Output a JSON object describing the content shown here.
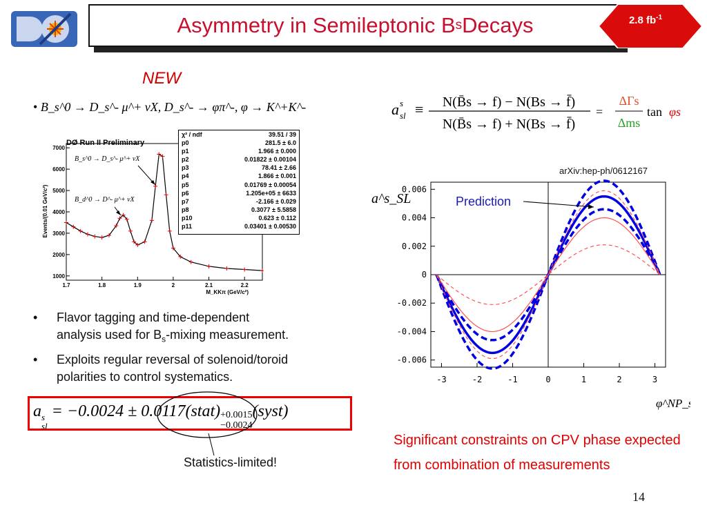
{
  "header": {
    "title": "Asymmetry in Semileptonic B",
    "title_sub": "s",
    "title_tail": " Decays",
    "badge_text": "2.8 fb",
    "badge_sup": "-1",
    "logo_text": "DØ"
  },
  "new_label": "NEW",
  "decay_bullet": {
    "bullet": "•",
    "text": "B_s^0 → D_s^- μ^+ νX, D_s^- → φπ^-, φ → K^+K^-"
  },
  "mass_plot": {
    "title": "DØ Run II Preliminary",
    "ylabel": "Events/(0.01 GeV/c²)",
    "xlabel": "M_KKπ (GeV/c²)",
    "y_ticks": [
      "7000",
      "6000",
      "5000",
      "4000",
      "3000",
      "2000",
      "1000"
    ],
    "x_ticks": [
      "1.7",
      "1.8",
      "1.9",
      "2",
      "2.1",
      "2.2"
    ],
    "ann_bs": "B_s^0 → D_s^- μ^+ νX",
    "ann_bd": "B_d^0 → D^- μ^+ νX",
    "fit_params": [
      {
        "name": "χ² / ndf",
        "value": "39.51 / 39"
      },
      {
        "name": "p0",
        "value": "281.5 ± 6.0"
      },
      {
        "name": "p1",
        "value": "1.966 ± 0.000"
      },
      {
        "name": "p2",
        "value": "0.01822 ± 0.00104"
      },
      {
        "name": "p3",
        "value": "78.41 ± 2.66"
      },
      {
        "name": "p4",
        "value": "1.866 ± 0.001"
      },
      {
        "name": "p5",
        "value": "0.01769 ± 0.00054"
      },
      {
        "name": "p6",
        "value": "1.205e+05 ± 6633"
      },
      {
        "name": "p7",
        "value": "-2.166 ± 0.029"
      },
      {
        "name": "p8",
        "value": "0.3077 ± 5.5858"
      },
      {
        "name": "p10",
        "value": "0.623 ± 0.112"
      },
      {
        "name": "p11",
        "value": "0.03401 ± 0.00530"
      }
    ]
  },
  "bullets": [
    {
      "marker": "•",
      "line1": "Flavor tagging and time-dependent",
      "line2a": "analysis used for B",
      "line2sub": "s",
      "line2b": "-mixing measurement."
    },
    {
      "marker": "•",
      "line1": "Exploits regular reversal of solenoid/toroid",
      "line2a": "polarities to control systematics.",
      "line2sub": "",
      "line2b": ""
    }
  ],
  "result_formula": {
    "lhs": "a",
    "lhs_sup": "s",
    "lhs_sub": "sl",
    "main": " = −0.0024 ± 0.0117(stat)",
    "err_up": "+0.0015",
    "err_down": "−0.0024",
    "syst": "(syst)"
  },
  "stat_note": "Statistics-limited!",
  "definition": {
    "lhs": "a",
    "lhs_sup": "s",
    "lhs_sub": "sl",
    "equiv": "≡",
    "numerator": "N(B̄s → f) − N(Bs → f̄)",
    "denominator": "N(B̄s → f) + N(Bs → f̄)",
    "eq": "=",
    "frac2_num": "ΔΓs",
    "frac2_den": "Δms",
    "tan": "tan",
    "phi": "φs"
  },
  "arxiv_ref": "arXiv:hep-ph/0612167",
  "prediction_plot": {
    "prediction_label": "Prediction",
    "ylabel": "a^s_SL",
    "xlabel": "φ^NP_s",
    "y_ticks": [
      "0.006",
      "0.004",
      "0.002",
      "0",
      "-0.002",
      "-0.004",
      "-0.006"
    ],
    "x_ticks": [
      "-3",
      "-2",
      "-1",
      "0",
      "1",
      "2",
      "3"
    ]
  },
  "chart_data": [
    {
      "type": "line",
      "title": "DØ Run II Preliminary",
      "xlabel": "M_KKπ (GeV/c²)",
      "ylabel": "Events/(0.01 GeV/c²)",
      "xlim": [
        1.7,
        2.25
      ],
      "ylim": [
        800,
        7200
      ],
      "series": [
        {
          "x": [
            1.7,
            1.72,
            1.74,
            1.76,
            1.78,
            1.8,
            1.82,
            1.84,
            1.85,
            1.86,
            1.87,
            1.88,
            1.89,
            1.9,
            1.92,
            1.94,
            1.95,
            1.96,
            1.97,
            1.98,
            1.99,
            2.0,
            2.02,
            2.05,
            2.1,
            2.15,
            2.2,
            2.25
          ],
          "y": [
            3500,
            3300,
            3100,
            2950,
            2850,
            2800,
            2900,
            3350,
            3700,
            3850,
            3650,
            3100,
            2600,
            2450,
            2600,
            3600,
            5200,
            6700,
            6600,
            4800,
            3100,
            2300,
            1900,
            1650,
            1450,
            1350,
            1300,
            1250
          ]
        }
      ]
    },
    {
      "type": "line",
      "xlabel": "φ^NP_s",
      "ylabel": "a^s_SL",
      "xlim": [
        -3.3,
        3.3
      ],
      "ylim": [
        -0.0065,
        0.0065
      ],
      "note": "curves follow a·sin(φ) with amplitudes below",
      "series": [
        {
          "name": "",
          "style": "solid-blue",
          "amplitude": 0.0055
        },
        {
          "name": "",
          "style": "dashed-blue",
          "amplitude": 0.0066
        },
        {
          "name": "",
          "style": "dashed-blue",
          "amplitude": 0.0046
        },
        {
          "name": "",
          "style": "solid-red",
          "amplitude": 0.004
        },
        {
          "name": "",
          "style": "dashed-red",
          "amplitude": 0.0059
        },
        {
          "name": "",
          "style": "dashed-red",
          "amplitude": 0.0021
        }
      ]
    }
  ],
  "page_number": "14"
}
